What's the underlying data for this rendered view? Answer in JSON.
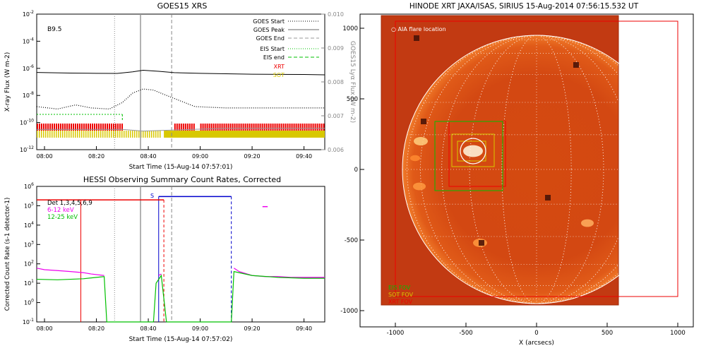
{
  "chart_data": [
    {
      "type": "line",
      "title": "GOES15 XRS",
      "xlabel": "Start Time (15-Aug-14 07:57:01)",
      "ylabel": "X-ray Flux (W m-2)",
      "ylabel_right": "GOES15 Lyα Flux (W m-2)",
      "class_label": "B9.5",
      "x_ticks": [
        "08:00",
        "08:20",
        "08:40",
        "09:00",
        "09:20",
        "09:40"
      ],
      "y_ticks": [
        "10-2",
        "10-4",
        "10-6",
        "10-8",
        "10-10",
        "10-12"
      ],
      "y_ticks_right": [
        "0.010",
        "0.009",
        "0.008",
        "0.007",
        "0.006"
      ],
      "ylim": [
        1e-12,
        0.01
      ],
      "ylim_right": [
        0.006,
        0.01
      ],
      "xlim": [
        "07:57",
        "09:48"
      ],
      "legend": [
        {
          "label": "GOES Start",
          "style": "dotted",
          "color": "#000000"
        },
        {
          "label": "GOES Peak",
          "style": "solid",
          "color": "#9a9a9a"
        },
        {
          "label": "GOES End",
          "style": "dashed",
          "color": "#9a9a9a"
        },
        {
          "label": "EIS Start",
          "style": "dotted",
          "color": "#00c000"
        },
        {
          "label": "EIS end",
          "style": "dashed",
          "color": "#00c000"
        },
        {
          "label": "XRT",
          "style": "text",
          "color": "#ee0000"
        },
        {
          "label": "SOT",
          "style": "text",
          "color": "#d8c800"
        }
      ],
      "series": [
        {
          "name": "",
          "color": "#000000",
          "x": [
            "07:57",
            "08:10",
            "08:20",
            "08:28",
            "08:34",
            "08:38",
            "08:44",
            "08:50",
            "09:00",
            "09:10",
            "09:20",
            "09:30",
            "09:40",
            "09:48"
          ],
          "values": [
            5e-07,
            4.5e-07,
            4.3e-07,
            4.2e-07,
            5.5e-07,
            7.2e-07,
            6e-07,
            4.8e-07,
            4.3e-07,
            4e-07,
            3.7e-07,
            3.6e-07,
            3.5e-07,
            3.3e-07
          ]
        },
        {
          "name": "",
          "color": "#000000",
          "style": "dots",
          "x": [
            "07:57",
            "08:05",
            "08:12",
            "08:18",
            "08:25",
            "08:30",
            "08:34",
            "08:38",
            "08:42",
            "08:46",
            "08:50",
            "08:54",
            "08:58",
            "09:10",
            "09:30",
            "09:48"
          ],
          "values": [
            1.5e-09,
            1e-09,
            2e-09,
            1.2e-09,
            1e-09,
            3e-09,
            1.5e-08,
            3e-08,
            2.5e-08,
            1.2e-08,
            6e-09,
            3e-09,
            1.5e-09,
            1.2e-09,
            1.2e-09,
            1.2e-09
          ]
        },
        {
          "name": "",
          "color": "#9a9a9a",
          "x": [
            "07:57",
            "08:30",
            "08:38",
            "08:50",
            "09:10",
            "09:48"
          ],
          "values_right": [
            0.0066,
            0.0066,
            0.00655,
            0.00658,
            0.00663,
            0.00663
          ]
        }
      ],
      "events": {
        "goes_start": "08:27",
        "goes_peak": "08:37",
        "goes_end": "08:49",
        "eis_start": "07:57",
        "eis_end": "08:30"
      },
      "xrt_bars": [
        [
          "07:57",
          "08:30"
        ],
        [
          "08:50",
          "08:58"
        ],
        [
          "09:00",
          "09:48"
        ]
      ],
      "sot_bars": [
        [
          "07:57",
          "08:45"
        ],
        [
          "08:46",
          "09:48"
        ]
      ]
    },
    {
      "type": "line",
      "title": "HESSI Observing Summary Count Rates, Corrected",
      "xlabel": "Start Time (15-Aug-14 07:57:02)",
      "ylabel": "Corrected Count Rate (s-1 detector-1)",
      "x_ticks": [
        "08:00",
        "08:20",
        "08:40",
        "09:00",
        "09:20",
        "09:40"
      ],
      "y_ticks": [
        "10-1",
        "100",
        "101",
        "102",
        "103",
        "104",
        "105",
        "106"
      ],
      "ylim": [
        0.1,
        1000000.0
      ],
      "xlim": [
        "07:57",
        "09:48"
      ],
      "legend": [
        {
          "label": "Det 1,3,4,5,6,9",
          "color": "#000000"
        },
        {
          "label": "6-12 keV",
          "color": "#ee00ee"
        },
        {
          "label": "12-25 keV",
          "color": "#00c000"
        }
      ],
      "annotations": [
        {
          "label": "S",
          "color": "#0000cc"
        }
      ],
      "series": [
        {
          "name": "6-12 keV",
          "color": "#ee00ee",
          "segments": [
            {
              "x": [
                "07:57",
                "08:00",
                "08:05",
                "08:10",
                "08:15",
                "08:18",
                "08:23"
              ],
              "values": [
                60,
                50,
                45,
                40,
                35,
                30,
                25
              ]
            },
            {
              "x": [
                "08:44",
                "08:45"
              ],
              "values": [
                25,
                30
              ]
            },
            {
              "x": [
                "09:13",
                "09:15",
                "09:20",
                "09:25",
                "09:30",
                "09:35",
                "09:40",
                "09:48"
              ],
              "values": [
                60,
                40,
                25,
                22,
                22,
                20,
                20,
                20
              ]
            }
          ]
        },
        {
          "name": "12-25 keV",
          "color": "#00c000",
          "segments": [
            {
              "x": [
                "07:57",
                "08:05",
                "08:10",
                "08:15",
                "08:20",
                "08:23",
                "08:24",
                "08:42"
              ],
              "values": [
                16,
                15,
                16,
                17,
                20,
                22,
                0.1,
                0.1
              ]
            },
            {
              "x": [
                "08:42",
                "08:43",
                "08:45",
                "08:47"
              ],
              "values": [
                0.1,
                10,
                25,
                0.1
              ]
            },
            {
              "x": [
                "08:47",
                "09:12",
                "09:13",
                "09:20",
                "09:30",
                "09:40",
                "09:48"
              ],
              "values": [
                0.1,
                0.1,
                40,
                25,
                20,
                18,
                18
              ]
            }
          ]
        }
      ],
      "events": {
        "goes_start": "08:27",
        "goes_peak": "08:37",
        "goes_end": "08:49",
        "red_solid": "08:14",
        "red_dashed": "08:46",
        "blue_solid": "08:44",
        "blue_dashed": "09:12"
      },
      "horizontal_levels": [
        {
          "color": "#ee0000",
          "from": "07:57",
          "to": "08:46",
          "value": 200000
        },
        {
          "color": "#0000cc",
          "from": "08:44",
          "to": "09:12",
          "value": 300000
        },
        {
          "color": "#ee00ee",
          "from": "09:24",
          "to": "09:26",
          "value": 90000
        }
      ]
    },
    {
      "type": "image",
      "title": "HINODE XRT JAXA/ISAS, SIRIUS 15-Aug-2014 07:56:15.532 UT",
      "xlabel": "X (arcsecs)",
      "x_ticks": [
        "-1000",
        "-500",
        "0",
        "500",
        "1000"
      ],
      "y_ticks": [
        "1000",
        "500",
        "0",
        "-500",
        "-1000"
      ],
      "xlim": [
        -1100,
        1100
      ],
      "ylim": [
        -1100,
        1100
      ],
      "legend": [
        {
          "label": "AIA flare location",
          "color": "#ffffff"
        },
        {
          "label": "EIS FOV",
          "color": "#00c000"
        },
        {
          "label": "SOT FOV",
          "color": "#d8c800"
        },
        {
          "label": "XRT FOV",
          "color": "#ee0000"
        }
      ],
      "solar_radius_arcsec": 950,
      "flare_location": [
        -450,
        130
      ],
      "fovs": [
        {
          "name": "XRT",
          "color": "#ee0000",
          "x": [
            -1000,
            1000
          ],
          "y": [
            -900,
            1050
          ]
        },
        {
          "name": "XRT",
          "color": "#ee0000",
          "x": [
            -620,
            -220
          ],
          "y": [
            -120,
            340
          ]
        },
        {
          "name": "EIS",
          "color": "#00c000",
          "x": [
            -720,
            -240
          ],
          "y": [
            -150,
            340
          ]
        },
        {
          "name": "SOT",
          "color": "#d8c800",
          "x": [
            -600,
            -300
          ],
          "y": [
            20,
            250
          ]
        }
      ]
    }
  ]
}
